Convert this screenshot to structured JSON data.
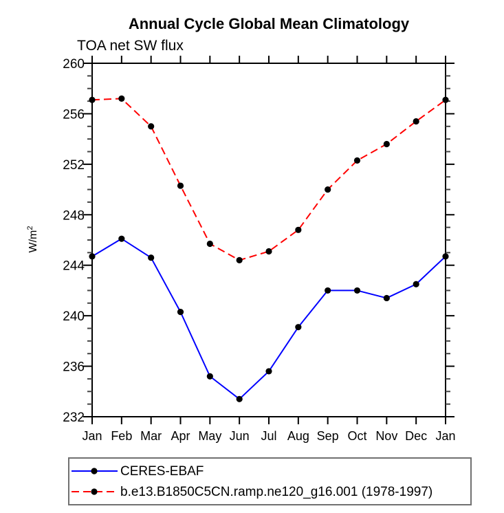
{
  "chart_data": {
    "type": "line",
    "title": "Annual Cycle Global Mean Climatology",
    "subtitle": "TOA net SW flux",
    "ylabel": "W/m²",
    "ylabel_base": "W/m",
    "ylabel_sup": "2",
    "categories": [
      "Jan",
      "Feb",
      "Mar",
      "Apr",
      "May",
      "Jun",
      "Jul",
      "Aug",
      "Sep",
      "Oct",
      "Nov",
      "Dec",
      "Jan"
    ],
    "ylim": [
      232,
      260
    ],
    "y_major_step": 4,
    "y_minor_step": 1,
    "y_major_tick_labels": [
      "232",
      "236",
      "240",
      "244",
      "248",
      "252",
      "256",
      "260"
    ],
    "grid": "off",
    "legend_position": "bottom-left",
    "axis_color": "#000000",
    "marker_shape": "filled-circle",
    "series": [
      {
        "name": "CERES-EBAF",
        "color": "#0000ff",
        "line_style": "solid",
        "marker_color": "#000000",
        "values": [
          244.7,
          246.1,
          244.6,
          240.3,
          235.2,
          233.4,
          235.6,
          239.1,
          242.0,
          242.0,
          241.4,
          242.5,
          244.7
        ]
      },
      {
        "name": "b.e13.B1850C5CN.ramp.ne120_g16.001 (1978-1997)",
        "color": "#ff0000",
        "line_style": "dashed",
        "marker_color": "#000000",
        "values": [
          257.1,
          257.2,
          255.0,
          250.3,
          245.7,
          244.4,
          245.1,
          246.8,
          250.0,
          252.3,
          253.6,
          255.4,
          257.1
        ]
      }
    ]
  }
}
